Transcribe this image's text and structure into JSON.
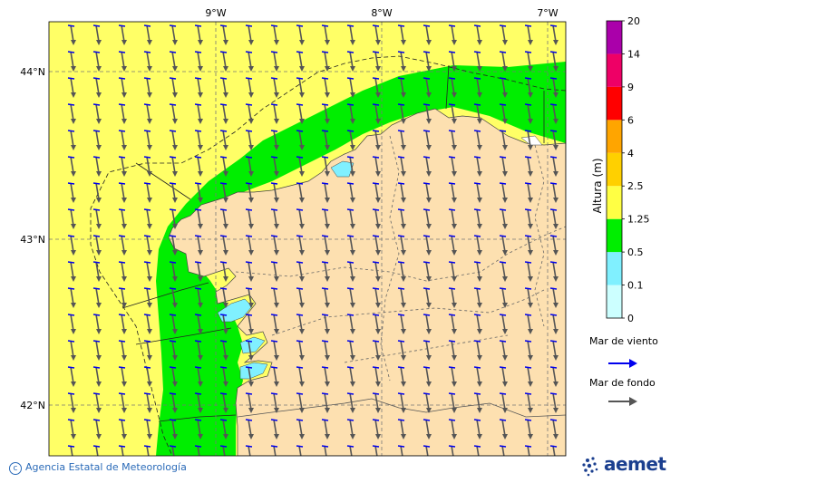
{
  "map": {
    "lon_labels": [
      "9°W",
      "8°W",
      "7°W"
    ],
    "lat_labels": [
      "44°N",
      "43°N",
      "42°N"
    ]
  },
  "colorbar": {
    "title": "Altura (m)",
    "levels": [
      "0",
      "0.1",
      "0.5",
      "1.25",
      "2.5",
      "4",
      "6",
      "9",
      "14",
      "20"
    ],
    "colors": [
      "#ccffff",
      "#80f0ff",
      "#00ee00",
      "#ffff44",
      "#ffd000",
      "#ffa500",
      "#ff0000",
      "#ee0066",
      "#aa00aa"
    ]
  },
  "legend": {
    "wind_sea_label": "Mar de viento",
    "wind_sea_color": "#0000ee",
    "swell_label": "Mar de fondo",
    "swell_color": "#555555"
  },
  "colors": {
    "high_sea": "#ffff66",
    "mid_sea": "#00ee00",
    "low_sea": "#80f0ff",
    "land": "#fde0b0"
  },
  "credit": "Agencia Estatal de Meteorología",
  "logo_text": "aemet"
}
